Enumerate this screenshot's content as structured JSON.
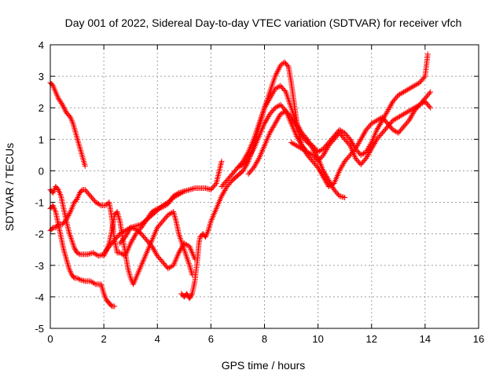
{
  "chart_data": {
    "type": "scatter",
    "title": "Day 001 of 2022, Sidereal Day-to-day VTEC variation (SDTVAR) for receiver vfch",
    "xlabel": "GPS time / hours",
    "ylabel": "SDTVAR / TECUs",
    "xlim": [
      0,
      16
    ],
    "ylim": [
      -5,
      4
    ],
    "xticks": [
      0,
      2,
      4,
      6,
      8,
      10,
      12,
      14,
      16
    ],
    "yticks": [
      -5,
      -4,
      -3,
      -2,
      -1,
      0,
      1,
      2,
      3,
      4
    ],
    "grid": true,
    "marker": "+",
    "colors": {
      "series": "#ff0000",
      "grid": "#a0a0a0",
      "axis": "#000000"
    },
    "series": [
      {
        "x": [
          0.0,
          0.1,
          0.2,
          0.3,
          0.45,
          0.6,
          0.75,
          0.85,
          0.95,
          1.05,
          1.15,
          1.25,
          1.3
        ],
        "y": [
          2.8,
          2.7,
          2.5,
          2.3,
          2.1,
          1.85,
          1.7,
          1.5,
          1.2,
          0.9,
          0.6,
          0.3,
          0.15
        ]
      },
      {
        "x": [
          0.0,
          0.1,
          0.2,
          0.3,
          0.4,
          0.5,
          0.6,
          0.7,
          0.8,
          0.9,
          1.0,
          1.1,
          1.3,
          1.5,
          1.7,
          1.9,
          2.0,
          2.1,
          2.2,
          2.3,
          2.4
        ],
        "y": [
          -1.2,
          -1.1,
          -1.3,
          -1.7,
          -2.1,
          -2.5,
          -2.8,
          -3.1,
          -3.3,
          -3.4,
          -3.4,
          -3.45,
          -3.5,
          -3.5,
          -3.6,
          -3.6,
          -3.9,
          -4.1,
          -4.2,
          -4.3,
          -4.3
        ]
      },
      {
        "x": [
          0.0,
          0.1,
          0.2,
          0.3,
          0.4,
          0.5,
          0.6,
          0.7,
          0.8,
          0.9,
          1.0,
          1.1,
          1.2,
          1.4,
          1.6,
          1.8,
          2.0,
          2.2,
          2.4,
          2.6,
          2.8,
          3.0,
          3.2,
          3.4,
          3.6,
          3.8,
          4.0,
          4.2,
          4.4,
          4.6,
          4.8,
          5.0,
          5.2,
          5.4,
          5.6,
          5.8,
          6.0,
          6.2,
          6.4
        ],
        "y": [
          -0.6,
          -0.7,
          -0.5,
          -0.6,
          -0.8,
          -1.2,
          -1.6,
          -1.95,
          -2.2,
          -2.45,
          -2.6,
          -2.65,
          -2.65,
          -2.65,
          -2.6,
          -2.7,
          -2.65,
          -2.4,
          -2.2,
          -2.0,
          -1.9,
          -1.8,
          -1.75,
          -1.7,
          -1.55,
          -1.4,
          -1.25,
          -1.1,
          -1.0,
          -0.85,
          -0.75,
          -0.65,
          -0.6,
          -0.55,
          -0.55,
          -0.55,
          -0.6,
          -0.4,
          0.3
        ]
      },
      {
        "x": [
          0.0,
          0.1,
          0.2,
          0.3,
          0.45,
          0.6,
          0.75,
          0.9,
          1.0,
          1.1,
          1.2,
          1.3,
          1.5,
          1.7,
          1.9,
          2.05,
          2.2,
          2.3,
          2.4,
          2.5,
          2.6,
          2.8,
          3.0,
          3.2,
          3.4,
          3.6,
          3.8,
          4.0,
          4.2,
          4.4,
          4.6,
          4.8,
          5.0
        ],
        "y": [
          -1.9,
          -1.8,
          -1.8,
          -1.7,
          -1.7,
          -1.55,
          -1.3,
          -1.0,
          -0.9,
          -0.7,
          -0.6,
          -0.6,
          -0.8,
          -1.0,
          -1.1,
          -1.1,
          -1.0,
          -1.5,
          -2.2,
          -2.6,
          -2.6,
          -2.7,
          -2.3,
          -2.0,
          -1.8,
          -1.55,
          -1.3,
          -1.2,
          -1.15,
          -1.05,
          -0.8,
          -0.7,
          -0.65
        ]
      },
      {
        "x": [
          2.0,
          2.1,
          2.2,
          2.3,
          2.4,
          2.5,
          2.6,
          2.7,
          2.8,
          2.9,
          3.0,
          3.1,
          3.2,
          3.4,
          3.6,
          3.8,
          4.0,
          4.2,
          4.4,
          4.6,
          4.7,
          4.8,
          5.0,
          5.2,
          5.3
        ],
        "y": [
          -2.7,
          -2.5,
          -2.3,
          -1.9,
          -1.4,
          -1.3,
          -1.6,
          -2.1,
          -2.6,
          -3.1,
          -3.4,
          -3.6,
          -3.4,
          -3.0,
          -2.6,
          -2.2,
          -1.8,
          -1.6,
          -1.4,
          -1.3,
          -1.6,
          -2.0,
          -2.5,
          -3.0,
          -3.3
        ]
      },
      {
        "x": [
          2.6,
          2.8,
          3.0,
          3.2,
          3.4,
          3.6,
          3.8,
          4.0,
          4.2,
          4.4,
          4.6,
          4.8,
          5.0,
          5.2,
          5.3,
          5.4
        ],
        "y": [
          -2.3,
          -2.1,
          -1.8,
          -1.85,
          -2.0,
          -2.2,
          -2.4,
          -2.7,
          -2.9,
          -3.1,
          -3.0,
          -2.6,
          -2.3,
          -2.4,
          -2.6,
          -2.8
        ]
      },
      {
        "x": [
          4.9,
          5.0,
          5.1,
          5.2,
          5.3,
          5.4,
          5.5,
          5.55,
          5.6,
          5.7,
          5.8,
          5.9,
          6.0,
          6.2,
          6.4,
          6.6,
          6.8,
          7.0,
          7.2,
          7.4,
          7.6,
          7.8,
          8.0,
          8.2,
          8.4,
          8.6,
          8.75,
          8.9,
          9.0,
          9.1,
          9.2,
          9.3,
          9.4,
          9.5
        ],
        "y": [
          -3.9,
          -4.0,
          -3.9,
          -4.05,
          -3.9,
          -3.5,
          -2.8,
          -2.3,
          -2.1,
          -2.0,
          -2.1,
          -1.9,
          -1.6,
          -1.2,
          -0.8,
          -0.5,
          -0.3,
          -0.15,
          0.0,
          0.3,
          0.8,
          1.4,
          2.0,
          2.5,
          3.0,
          3.35,
          3.45,
          3.3,
          2.8,
          2.2,
          1.6,
          1.1,
          0.8,
          0.7
        ]
      },
      {
        "x": [
          6.4,
          6.6,
          6.8,
          7.0,
          7.2,
          7.4,
          7.6,
          7.8,
          8.0,
          8.2,
          8.4,
          8.6,
          8.8,
          9.0,
          9.2,
          9.4,
          9.6,
          9.8,
          10.0,
          10.2,
          10.4,
          10.6,
          10.8,
          11.0
        ],
        "y": [
          -0.5,
          -0.3,
          -0.1,
          0.1,
          0.3,
          0.6,
          1.0,
          1.5,
          2.0,
          2.3,
          2.6,
          2.7,
          2.5,
          2.0,
          1.5,
          1.2,
          1.0,
          0.7,
          0.4,
          0.0,
          -0.3,
          -0.6,
          -0.8,
          -0.85
        ]
      },
      {
        "x": [
          7.0,
          7.2,
          7.4,
          7.6,
          7.8,
          8.0,
          8.2,
          8.4,
          8.6,
          8.8,
          9.0,
          9.2,
          9.4,
          9.6,
          9.8,
          10.0,
          10.2,
          10.4,
          10.6,
          10.8,
          11.0,
          11.2,
          11.4,
          11.6,
          11.8,
          12.0,
          12.2,
          12.4,
          12.6,
          12.8,
          13.0,
          13.2,
          13.4,
          13.6,
          13.8,
          14.0,
          14.2
        ],
        "y": [
          0.1,
          0.2,
          0.4,
          0.7,
          1.1,
          1.5,
          1.8,
          2.0,
          2.1,
          1.9,
          1.5,
          1.1,
          0.8,
          0.5,
          0.3,
          0.1,
          -0.2,
          -0.5,
          -0.4,
          0.0,
          0.3,
          0.5,
          0.7,
          1.0,
          1.3,
          1.5,
          1.6,
          1.7,
          1.5,
          1.3,
          1.2,
          1.4,
          1.6,
          1.9,
          2.1,
          2.3,
          2.5
        ]
      },
      {
        "x": [
          7.4,
          7.6,
          7.8,
          8.0,
          8.2,
          8.4,
          8.6,
          8.8,
          9.0,
          9.2,
          9.4,
          9.6,
          9.8,
          10.0,
          10.2,
          10.4,
          10.6,
          10.8,
          11.0,
          11.2,
          11.4,
          11.6,
          11.8,
          12.0,
          12.2,
          12.4,
          12.6,
          12.8,
          13.0,
          13.2,
          13.4,
          13.6,
          13.8,
          14.0,
          14.1
        ],
        "y": [
          -0.1,
          0.1,
          0.4,
          0.8,
          1.2,
          1.5,
          1.8,
          1.9,
          1.7,
          1.4,
          1.1,
          0.9,
          0.8,
          0.6,
          0.7,
          0.9,
          1.1,
          1.3,
          1.2,
          1.0,
          0.7,
          0.5,
          0.6,
          0.9,
          1.3,
          1.6,
          1.9,
          2.2,
          2.4,
          2.5,
          2.6,
          2.7,
          2.8,
          3.0,
          3.7
        ]
      },
      {
        "x": [
          9.0,
          9.2,
          9.4,
          9.6,
          9.8,
          10.0,
          10.2,
          10.4,
          10.6,
          10.8,
          11.0,
          11.2,
          11.4,
          11.6,
          11.8,
          12.0,
          12.2,
          12.4,
          12.6,
          12.8,
          13.0,
          13.2,
          13.4,
          13.6,
          13.8,
          14.0,
          14.2
        ],
        "y": [
          0.9,
          0.8,
          0.7,
          0.6,
          0.5,
          0.3,
          0.5,
          0.8,
          1.0,
          1.2,
          1.0,
          0.8,
          0.4,
          0.2,
          0.4,
          0.7,
          1.0,
          1.2,
          1.4,
          1.6,
          1.7,
          1.8,
          1.9,
          2.0,
          2.1,
          2.2,
          2.0
        ]
      }
    ]
  }
}
